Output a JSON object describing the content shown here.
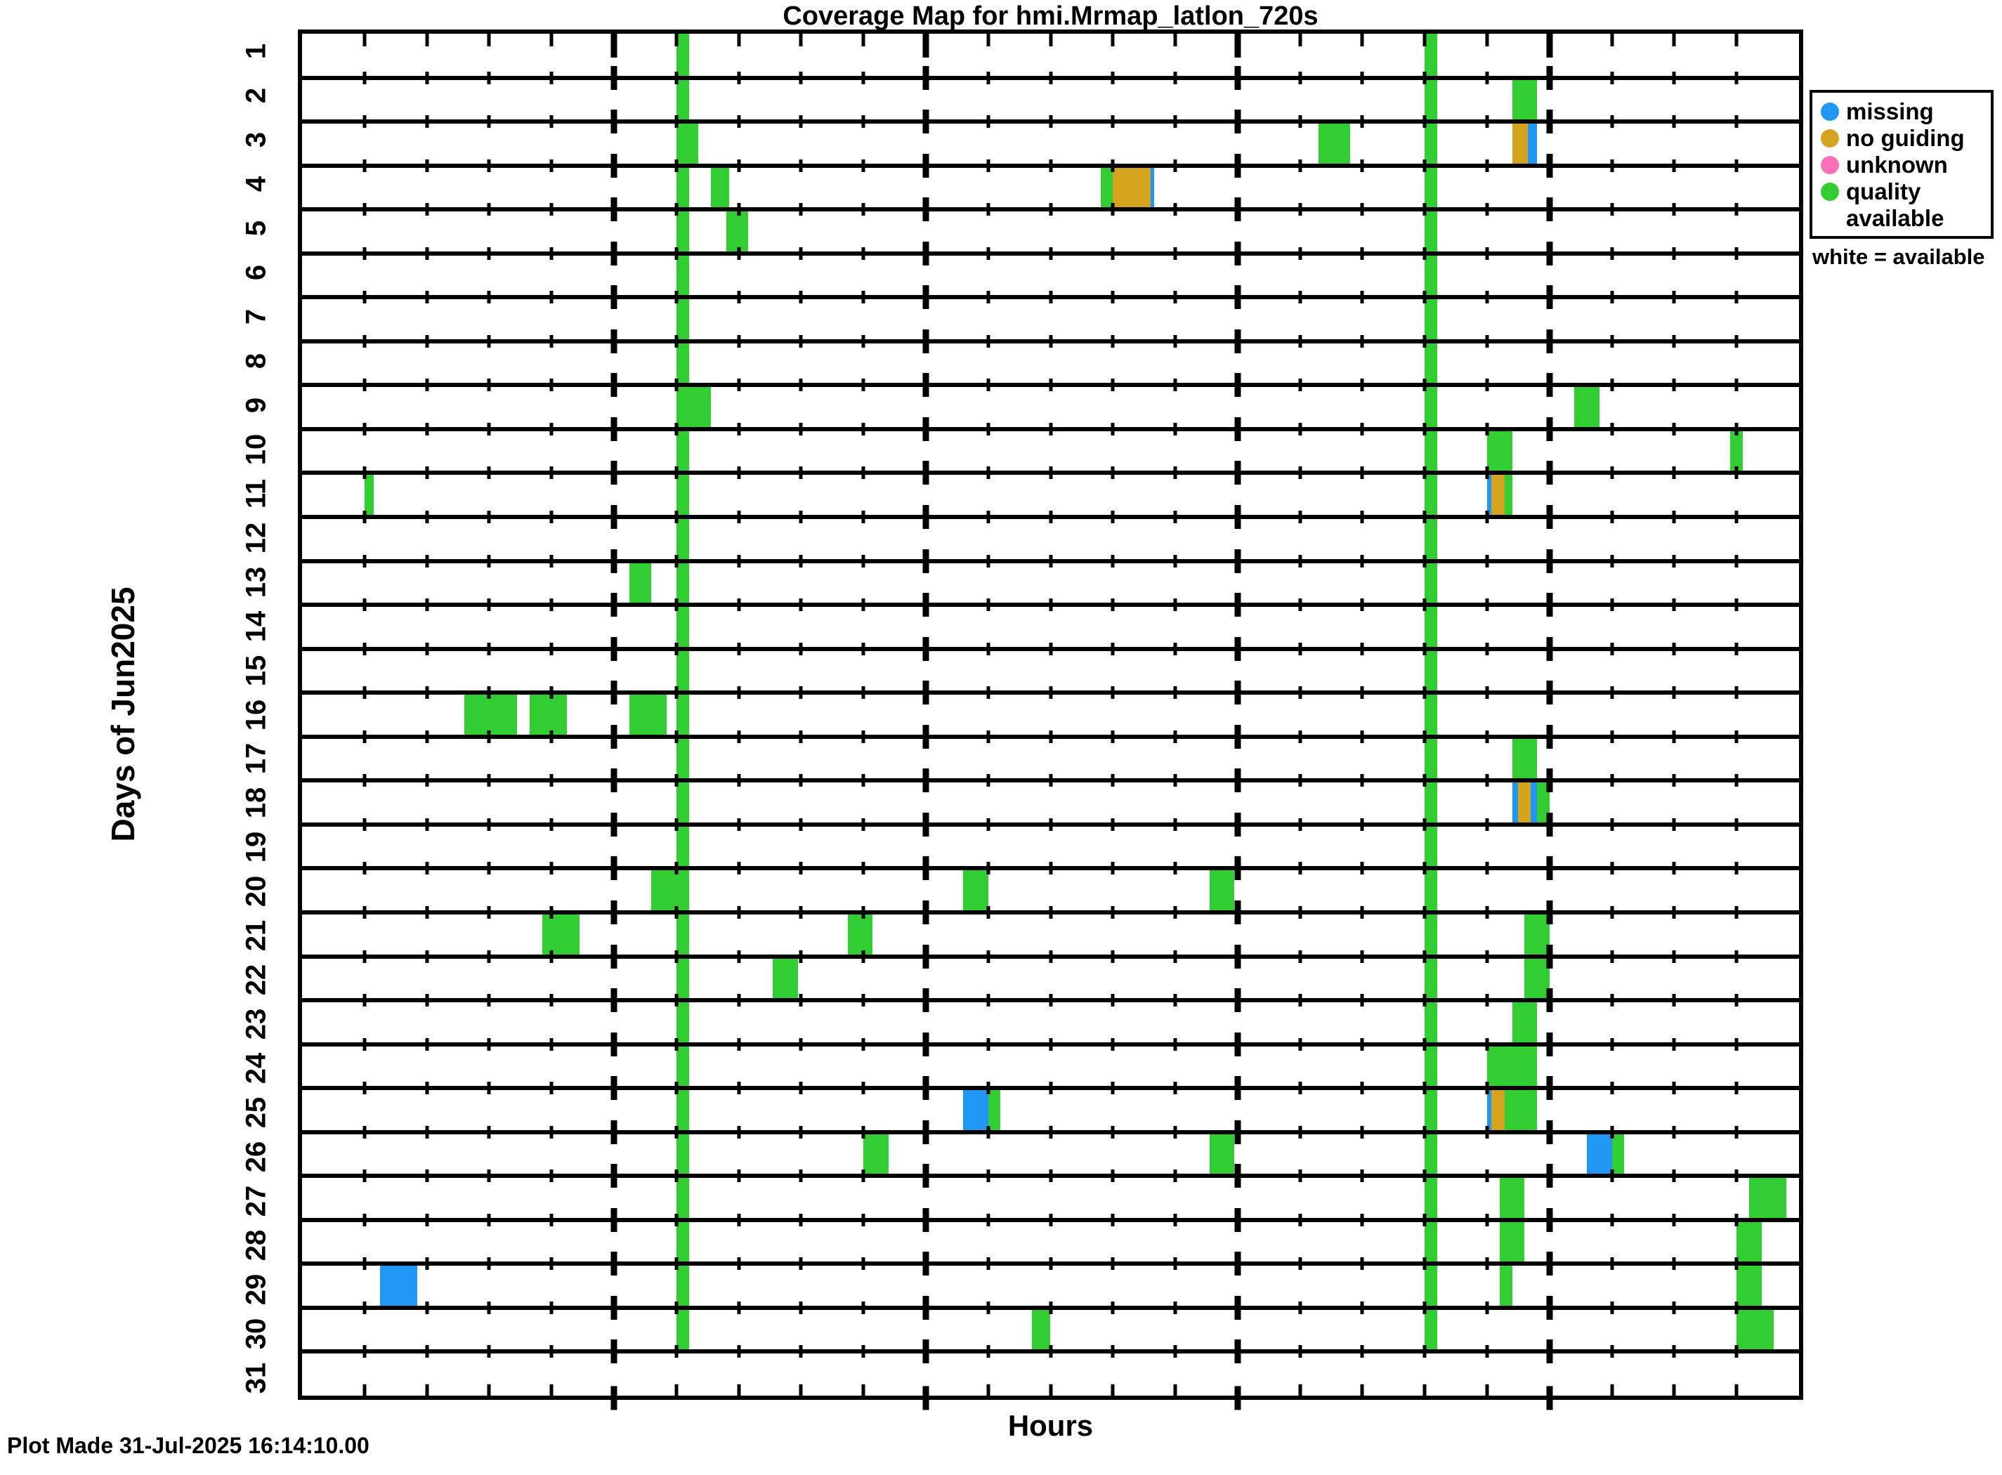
{
  "title": "Coverage Map for hmi.Mrmap_latlon_720s",
  "axes": {
    "xlabel": "Hours",
    "ylabel": "Days of Jun2025"
  },
  "footer": "Plot Made 31-Jul-2025 16:14:10.00",
  "legend": {
    "items": [
      {
        "status": "missing",
        "label_lines": [
          "missing"
        ]
      },
      {
        "status": "no_guiding",
        "label_lines": [
          "no guiding"
        ]
      },
      {
        "status": "unknown",
        "label_lines": [
          "unknown"
        ]
      },
      {
        "status": "available",
        "label_lines": [
          "quality",
          "available"
        ]
      }
    ],
    "note": "white = available"
  },
  "chart_data": {
    "type": "heatmap",
    "title": "Coverage Map for hmi.Mrmap_latlon_720s",
    "xlabel": "Hours",
    "ylabel": "Days of Jun2025",
    "x_range": [
      0,
      24
    ],
    "days": 31,
    "day_labels": [
      "1",
      "2",
      "3",
      "4",
      "5",
      "6",
      "7",
      "8",
      "9",
      "10",
      "11",
      "12",
      "13",
      "14",
      "15",
      "16",
      "17",
      "18",
      "19",
      "20",
      "21",
      "22",
      "23",
      "24",
      "25",
      "26",
      "27",
      "28",
      "29",
      "30",
      "31"
    ],
    "minor_tick_hours": 1,
    "major_tick_hours": 5,
    "grid": "row-lines-with-hour-dots",
    "legend_position": "outside-right",
    "status_colors": {
      "missing": "#2296f3",
      "no_guiding": "#d5a41f",
      "unknown": "#ff70b8",
      "available": "#32cd32"
    },
    "daily_calibration_columns": [
      {
        "start_hour": 6.0,
        "end_hour": 6.2,
        "day_start": 1,
        "day_end": 30,
        "status": "available"
      },
      {
        "start_hour": 18.0,
        "end_hour": 18.2,
        "day_start": 1,
        "day_end": 30,
        "status": "available"
      }
    ],
    "segments": [
      {
        "day": 2,
        "start": 19.4,
        "end": 19.8,
        "status": "available"
      },
      {
        "day": 3,
        "start": 6.0,
        "end": 6.35,
        "status": "available"
      },
      {
        "day": 3,
        "start": 16.3,
        "end": 16.8,
        "status": "available"
      },
      {
        "day": 3,
        "start": 19.4,
        "end": 19.65,
        "status": "no_guiding"
      },
      {
        "day": 3,
        "start": 19.65,
        "end": 19.8,
        "status": "missing"
      },
      {
        "day": 4,
        "start": 6.55,
        "end": 6.85,
        "status": "available"
      },
      {
        "day": 4,
        "start": 12.8,
        "end": 13.0,
        "status": "available"
      },
      {
        "day": 4,
        "start": 13.0,
        "end": 13.6,
        "status": "no_guiding"
      },
      {
        "day": 4,
        "start": 13.6,
        "end": 13.66,
        "status": "missing"
      },
      {
        "day": 5,
        "start": 6.8,
        "end": 7.15,
        "status": "available"
      },
      {
        "day": 9,
        "start": 6.0,
        "end": 6.55,
        "status": "available"
      },
      {
        "day": 9,
        "start": 20.4,
        "end": 20.8,
        "status": "available"
      },
      {
        "day": 10,
        "start": 19.0,
        "end": 19.4,
        "status": "available"
      },
      {
        "day": 10,
        "start": 22.9,
        "end": 23.1,
        "status": "available"
      },
      {
        "day": 11,
        "start": 1.0,
        "end": 1.15,
        "status": "available"
      },
      {
        "day": 11,
        "start": 19.0,
        "end": 19.07,
        "status": "missing"
      },
      {
        "day": 11,
        "start": 19.07,
        "end": 19.28,
        "status": "no_guiding"
      },
      {
        "day": 11,
        "start": 19.28,
        "end": 19.4,
        "status": "available"
      },
      {
        "day": 13,
        "start": 5.25,
        "end": 5.6,
        "status": "available"
      },
      {
        "day": 16,
        "start": 2.6,
        "end": 3.45,
        "status": "available"
      },
      {
        "day": 16,
        "start": 3.65,
        "end": 4.25,
        "status": "available"
      },
      {
        "day": 16,
        "start": 5.25,
        "end": 5.85,
        "status": "available"
      },
      {
        "day": 17,
        "start": 19.4,
        "end": 19.8,
        "status": "available"
      },
      {
        "day": 18,
        "start": 19.4,
        "end": 19.5,
        "status": "missing"
      },
      {
        "day": 18,
        "start": 19.5,
        "end": 19.7,
        "status": "no_guiding"
      },
      {
        "day": 18,
        "start": 19.7,
        "end": 19.8,
        "status": "missing"
      },
      {
        "day": 18,
        "start": 19.8,
        "end": 20.0,
        "status": "available"
      },
      {
        "day": 20,
        "start": 5.6,
        "end": 6.2,
        "status": "available"
      },
      {
        "day": 20,
        "start": 10.6,
        "end": 11.0,
        "status": "available"
      },
      {
        "day": 20,
        "start": 14.55,
        "end": 14.95,
        "status": "available"
      },
      {
        "day": 21,
        "start": 3.85,
        "end": 4.45,
        "status": "available"
      },
      {
        "day": 21,
        "start": 8.75,
        "end": 9.15,
        "status": "available"
      },
      {
        "day": 21,
        "start": 19.6,
        "end": 20.0,
        "status": "available"
      },
      {
        "day": 22,
        "start": 7.55,
        "end": 7.95,
        "status": "available"
      },
      {
        "day": 22,
        "start": 19.6,
        "end": 20.0,
        "status": "available"
      },
      {
        "day": 23,
        "start": 19.4,
        "end": 19.8,
        "status": "available"
      },
      {
        "day": 24,
        "start": 19.0,
        "end": 19.8,
        "status": "available"
      },
      {
        "day": 25,
        "start": 10.6,
        "end": 11.0,
        "status": "missing"
      },
      {
        "day": 25,
        "start": 11.0,
        "end": 11.2,
        "status": "available"
      },
      {
        "day": 25,
        "start": 19.0,
        "end": 19.07,
        "status": "missing"
      },
      {
        "day": 25,
        "start": 19.07,
        "end": 19.28,
        "status": "no_guiding"
      },
      {
        "day": 25,
        "start": 19.28,
        "end": 19.8,
        "status": "available"
      },
      {
        "day": 26,
        "start": 9.0,
        "end": 9.4,
        "status": "available"
      },
      {
        "day": 26,
        "start": 14.55,
        "end": 14.95,
        "status": "available"
      },
      {
        "day": 26,
        "start": 20.6,
        "end": 21.0,
        "status": "missing"
      },
      {
        "day": 26,
        "start": 21.0,
        "end": 21.2,
        "status": "available"
      },
      {
        "day": 27,
        "start": 19.2,
        "end": 19.6,
        "status": "available"
      },
      {
        "day": 27,
        "start": 23.2,
        "end": 23.8,
        "status": "available"
      },
      {
        "day": 28,
        "start": 19.2,
        "end": 19.6,
        "status": "available"
      },
      {
        "day": 28,
        "start": 23.0,
        "end": 23.4,
        "status": "available"
      },
      {
        "day": 29,
        "start": 1.25,
        "end": 1.85,
        "status": "missing"
      },
      {
        "day": 29,
        "start": 19.2,
        "end": 19.4,
        "status": "available"
      },
      {
        "day": 29,
        "start": 23.0,
        "end": 23.4,
        "status": "available"
      },
      {
        "day": 30,
        "start": 11.7,
        "end": 12.0,
        "status": "available"
      },
      {
        "day": 30,
        "start": 23.0,
        "end": 23.6,
        "status": "available"
      }
    ]
  }
}
